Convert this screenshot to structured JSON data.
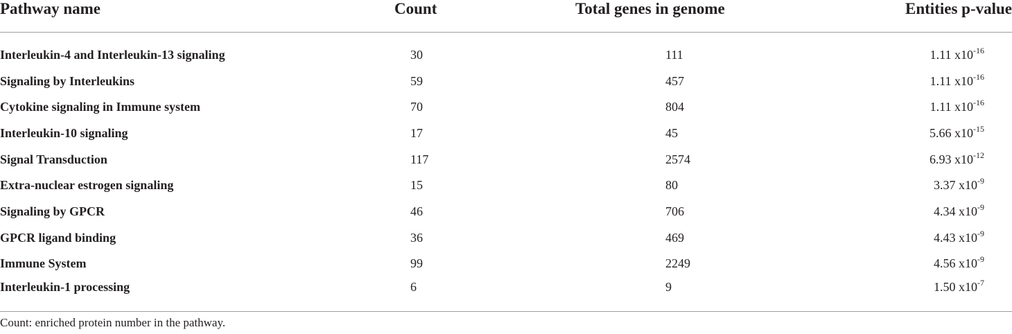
{
  "table": {
    "headers": {
      "pathway": "Pathway name",
      "count": "Count",
      "total": "Total genes in genome",
      "pvalue": "Entities p-value"
    },
    "rows": [
      {
        "name": "Interleukin-4 and Interleukin-13 signaling",
        "count": "30",
        "total": "111",
        "mantissa": "1.11 x10",
        "exponent": "-16"
      },
      {
        "name": "Signaling by Interleukins",
        "count": "59",
        "total": "457",
        "mantissa": "1.11 x10",
        "exponent": "-16"
      },
      {
        "name": "Cytokine signaling in Immune system",
        "count": "70",
        "total": "804",
        "mantissa": "1.11 x10",
        "exponent": "-16"
      },
      {
        "name": "Interleukin-10 signaling",
        "count": "17",
        "total": "45",
        "mantissa": "5.66 x10",
        "exponent": "-15"
      },
      {
        "name": "Signal Transduction",
        "count": "117",
        "total": "2574",
        "mantissa": "6.93 x10",
        "exponent": "-12"
      },
      {
        "name": "Extra-nuclear estrogen signaling",
        "count": "15",
        "total": "80",
        "mantissa": "3.37 x10",
        "exponent": "-9"
      },
      {
        "name": "Signaling by GPCR",
        "count": "46",
        "total": "706",
        "mantissa": "4.34 x10",
        "exponent": "-9"
      },
      {
        "name": "GPCR ligand binding",
        "count": "36",
        "total": "469",
        "mantissa": "4.43 x10",
        "exponent": "-9"
      },
      {
        "name": "Immune System",
        "count": "99",
        "total": "2249",
        "mantissa": "4.56 x10",
        "exponent": "-9"
      },
      {
        "name": "Interleukin-1 processing",
        "count": "6",
        "total": "9",
        "mantissa": "1.50 x10",
        "exponent": "-7"
      }
    ]
  },
  "footnote": "Count: enriched protein number in the pathway."
}
